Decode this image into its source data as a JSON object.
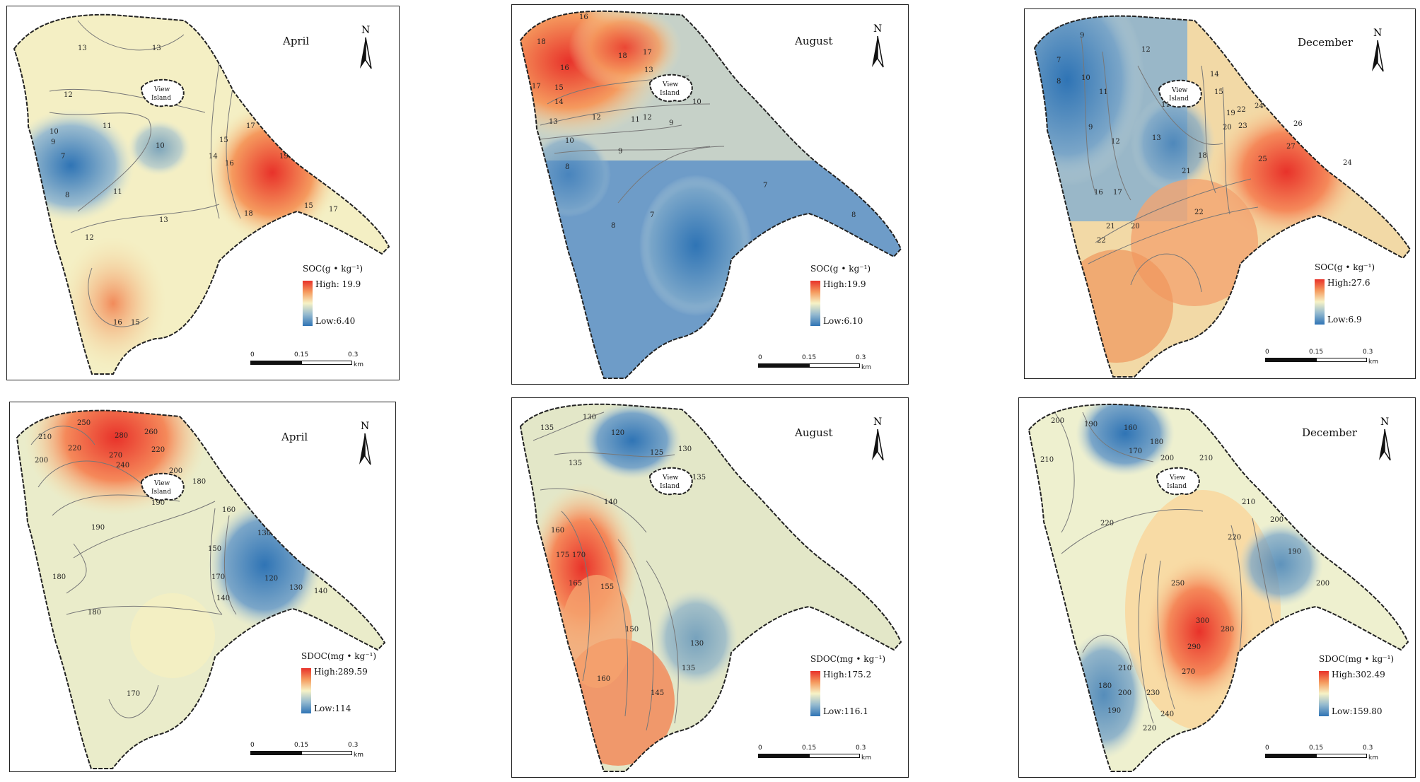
{
  "panels": [
    {
      "month": "April",
      "legend_title": "SOC(g • kg⁻¹)",
      "high": "High: 19.9",
      "low": "Low:6.40",
      "scale": {
        "t0": "0",
        "t1": "0.15",
        "t2": "0.3",
        "unit": "km"
      },
      "island": [
        "View",
        "Island"
      ],
      "contours": [
        "13",
        "13",
        "12",
        "11",
        "10",
        "10",
        "9",
        "7",
        "8",
        "11",
        "12",
        "13",
        "14",
        "15",
        "16",
        "17",
        "19",
        "18",
        "15",
        "17",
        "16",
        "15"
      ],
      "colors": {
        "high": "#e8322a",
        "low": "#2f74b5",
        "mid": "#f6f2c6"
      }
    },
    {
      "month": "August",
      "legend_title": "SOC(g • kg⁻¹)",
      "high": "High:19.9",
      "low": "Low:6.10",
      "scale": {
        "t0": "0",
        "t1": "0.15",
        "t2": "0.3",
        "unit": "km"
      },
      "island": [
        "View",
        "Island"
      ],
      "contours": [
        "16",
        "18",
        "18",
        "17",
        "16",
        "15",
        "14",
        "13",
        "12",
        "13",
        "12",
        "11",
        "10",
        "9",
        "10",
        "9",
        "8",
        "8",
        "7",
        "7",
        "8",
        "17"
      ]
    },
    {
      "month": "December",
      "legend_title": "SOC(g • kg⁻¹)",
      "high": "High:27.6",
      "low": "Low:6.9",
      "scale": {
        "t0": "0",
        "t1": "0.15",
        "t2": "0.3",
        "unit": "km"
      },
      "island": [
        "View",
        "Island"
      ],
      "contours": [
        "7",
        "8",
        "9",
        "10",
        "11",
        "12",
        "9",
        "12",
        "13",
        "14",
        "15",
        "11",
        "19",
        "20",
        "22",
        "24",
        "23",
        "26",
        "27",
        "25",
        "24",
        "18",
        "21",
        "22",
        "16",
        "17",
        "21",
        "20",
        "22"
      ]
    },
    {
      "month": "April",
      "legend_title": "SDOC(mg • kg⁻¹)",
      "high": "High:289.59",
      "low": "Low:114",
      "scale": {
        "t0": "0",
        "t1": "0.15",
        "t2": "0.3",
        "unit": "km"
      },
      "island": [
        "View",
        "Island"
      ],
      "contours": [
        "250",
        "210",
        "220",
        "280",
        "260",
        "270",
        "240",
        "220",
        "200",
        "190",
        "180",
        "190",
        "200",
        "180",
        "160",
        "150",
        "130",
        "140",
        "120",
        "130",
        "140",
        "170",
        "180",
        "170"
      ]
    },
    {
      "month": "August",
      "legend_title": "SDOC(mg • kg⁻¹)",
      "high": "High:175.2",
      "low": "Low:116.1",
      "scale": {
        "t0": "0",
        "t1": "0.15",
        "t2": "0.3",
        "unit": "km"
      },
      "island": [
        "View",
        "Island"
      ],
      "contours": [
        "135",
        "130",
        "120",
        "125",
        "130",
        "135",
        "140",
        "135",
        "160",
        "175",
        "170",
        "165",
        "155",
        "150",
        "130",
        "135",
        "145",
        "160"
      ]
    },
    {
      "month": "December",
      "legend_title": "SDOC(mg • kg⁻¹)",
      "high": "High:302.49",
      "low": "Low:159.80",
      "scale": {
        "t0": "0",
        "t1": "0.15",
        "t2": "0.3",
        "unit": "km"
      },
      "island": [
        "View",
        "Island"
      ],
      "contours": [
        "200",
        "190",
        "160",
        "170",
        "180",
        "200",
        "210",
        "210",
        "220",
        "220",
        "210",
        "200",
        "190",
        "250",
        "300",
        "280",
        "290",
        "270",
        "200",
        "180",
        "210",
        "200",
        "190",
        "230",
        "240",
        "220"
      ]
    }
  ]
}
